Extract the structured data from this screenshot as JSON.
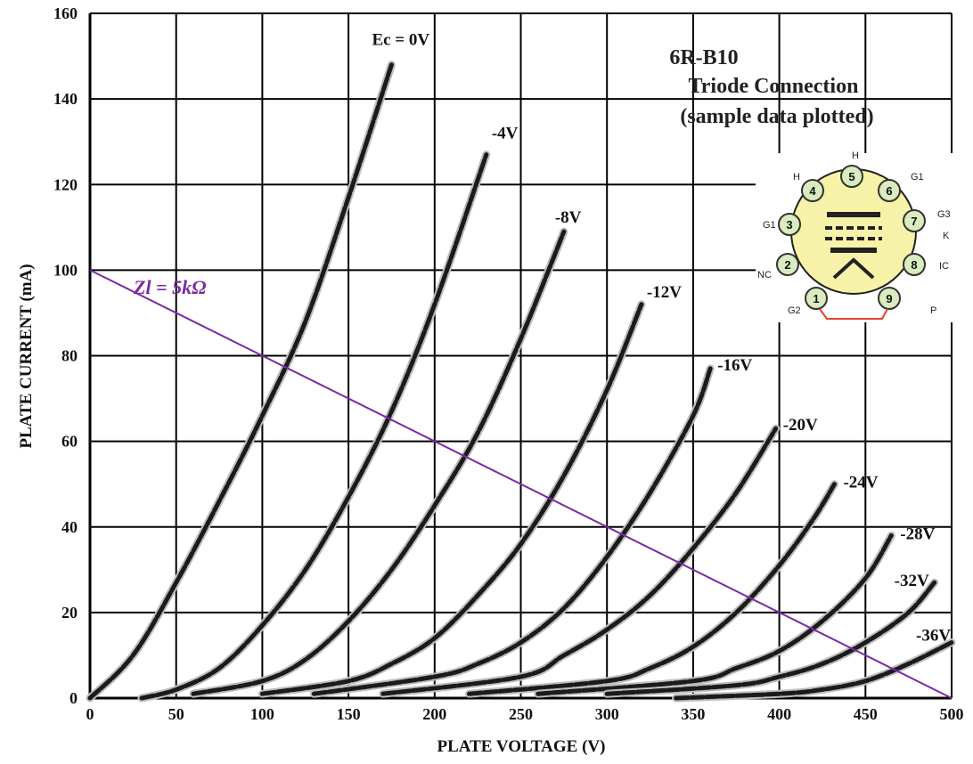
{
  "chart_data": {
    "type": "line",
    "title": "6R-B10",
    "subtitle_lines": [
      "Triode Connection",
      "(sample data plotted)"
    ],
    "xlabel": "PLATE VOLTAGE (V)",
    "ylabel": "PLATE CURRENT (mA)",
    "xlim": [
      0,
      500
    ],
    "ylim": [
      0,
      160
    ],
    "x_ticks": [
      0,
      50,
      100,
      150,
      200,
      250,
      300,
      350,
      400,
      450,
      500
    ],
    "y_ticks": [
      0,
      20,
      40,
      60,
      80,
      100,
      120,
      140,
      160
    ],
    "grid": true,
    "series": [
      {
        "name": "Ec = 0V",
        "x": [
          0,
          25,
          50,
          75,
          100,
          125,
          150,
          175
        ],
        "y": [
          0,
          10,
          27,
          46,
          66,
          88,
          117,
          148
        ]
      },
      {
        "name": "-4V",
        "x": [
          30,
          50,
          75,
          100,
          125,
          150,
          175,
          200,
          230
        ],
        "y": [
          0,
          2,
          7,
          17,
          30,
          47,
          67,
          92,
          127
        ]
      },
      {
        "name": "-8V",
        "x": [
          60,
          100,
          125,
          150,
          175,
          200,
          225,
          250,
          275
        ],
        "y": [
          1,
          4,
          9,
          18,
          30,
          45,
          62,
          84,
          109
        ]
      },
      {
        "name": "-12V",
        "x": [
          100,
          150,
          175,
          200,
          225,
          250,
          275,
          300,
          320
        ],
        "y": [
          1,
          4,
          8,
          14,
          24,
          36,
          52,
          72,
          92
        ]
      },
      {
        "name": "-16V",
        "x": [
          130,
          200,
          225,
          250,
          275,
          300,
          325,
          350,
          360
        ],
        "y": [
          1,
          5,
          8,
          13,
          21,
          33,
          48,
          66,
          77
        ]
      },
      {
        "name": "-20V",
        "x": [
          170,
          250,
          275,
          300,
          325,
          350,
          375,
          398
        ],
        "y": [
          1,
          5,
          10,
          16,
          24,
          35,
          48,
          63
        ]
      },
      {
        "name": "-24V",
        "x": [
          220,
          300,
          325,
          350,
          375,
          400,
          420,
          432
        ],
        "y": [
          1,
          4,
          7,
          12,
          20,
          31,
          42,
          50
        ]
      },
      {
        "name": "-28V",
        "x": [
          260,
          350,
          375,
          400,
          425,
          450,
          465
        ],
        "y": [
          1,
          4,
          7,
          11,
          18,
          28,
          38
        ]
      },
      {
        "name": "-32V",
        "x": [
          300,
          375,
          400,
          425,
          450,
          475,
          490
        ],
        "y": [
          1,
          3,
          5,
          8,
          13,
          20,
          27
        ]
      },
      {
        "name": "-36V",
        "x": [
          340,
          400,
          425,
          450,
          475,
          500
        ],
        "y": [
          0,
          1,
          2,
          4,
          8,
          13
        ]
      }
    ],
    "load_line": {
      "label": "Zl = 5kΩ",
      "x": [
        0,
        500
      ],
      "y": [
        100,
        0
      ],
      "color": "#7b2aa5"
    }
  },
  "curve_labels": [
    "Ec = 0V",
    "-4V",
    "-8V",
    "-12V",
    "-16V",
    "-20V",
    "-24V",
    "-28V",
    "-32V",
    "-36V"
  ],
  "pinout": {
    "pins": [
      "1",
      "2",
      "3",
      "4",
      "5",
      "6",
      "7",
      "8",
      "9"
    ],
    "labels": [
      "H",
      "H",
      "G1",
      "G1",
      "G3",
      "K",
      "NC",
      "IC",
      "G2",
      "P"
    ],
    "colors": {
      "base": "#f6f2a8",
      "pin": "#d9ecc0",
      "strap": "#e0442a"
    }
  }
}
